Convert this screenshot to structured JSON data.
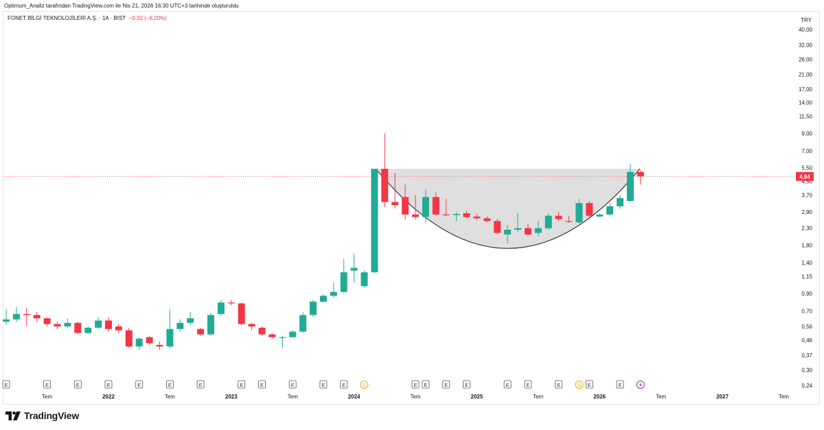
{
  "header": {
    "text": "Optimum_Analiz tarafından TradingView.com ile Nis 21, 2026 16:30 UTC+3 tarihinde oluşturuldu"
  },
  "legend": {
    "symbol": "FONET BİLGİ TEKNOLOJİLERİ A.Ş. · 1A · BIST",
    "change": "−0,32 (−6,20%)"
  },
  "brand": {
    "name": "TradingView"
  },
  "colors": {
    "up": "#22ab94",
    "down": "#f23645",
    "pattern_fill": "#dcdcdc",
    "pattern_line": "#333333",
    "price_line": "#f23645"
  },
  "chart_data": {
    "type": "candlestick",
    "interval": "1A",
    "y_scale": "log",
    "currency": "TRY",
    "ylim": [
      0.24,
      40.0
    ],
    "y_ticks": [
      "40,00",
      "32,00",
      "26,00",
      "21,00",
      "17,00",
      "14,00",
      "11,50",
      "9,00",
      "7,00",
      "5,50",
      "4,50",
      "3,70",
      "2,90",
      "2,30",
      "1,80",
      "1,40",
      "1,15",
      "0,90",
      "0,70",
      "0,56",
      "0,46",
      "0,37",
      "0,30",
      "0,24"
    ],
    "x_ticks": [
      {
        "label": "Tem",
        "date": "2021-07"
      },
      {
        "label": "2022",
        "date": "2022-01"
      },
      {
        "label": "Tem",
        "date": "2022-07"
      },
      {
        "label": "2023",
        "date": "2023-01"
      },
      {
        "label": "Tem",
        "date": "2023-07"
      },
      {
        "label": "2024",
        "date": "2024-01"
      },
      {
        "label": "Tem",
        "date": "2024-07"
      },
      {
        "label": "2025",
        "date": "2025-01"
      },
      {
        "label": "Tem",
        "date": "2025-07"
      },
      {
        "label": "2026",
        "date": "2026-01"
      },
      {
        "label": "Tem",
        "date": "2026-07"
      },
      {
        "label": "2027",
        "date": "2027-01"
      },
      {
        "label": "Tem",
        "date": "2027-07"
      }
    ],
    "last_price": "4,84",
    "candles": [
      {
        "date": "2021-03",
        "o": 0.6,
        "h": 0.72,
        "l": 0.57,
        "c": 0.62
      },
      {
        "date": "2021-04",
        "o": 0.62,
        "h": 0.74,
        "l": 0.6,
        "c": 0.67
      },
      {
        "date": "2021-05",
        "o": 0.67,
        "h": 0.73,
        "l": 0.56,
        "c": 0.66
      },
      {
        "date": "2021-06",
        "o": 0.66,
        "h": 0.69,
        "l": 0.6,
        "c": 0.63
      },
      {
        "date": "2021-07",
        "o": 0.63,
        "h": 0.64,
        "l": 0.56,
        "c": 0.58
      },
      {
        "date": "2021-08",
        "o": 0.58,
        "h": 0.6,
        "l": 0.54,
        "c": 0.56
      },
      {
        "date": "2021-09",
        "o": 0.56,
        "h": 0.63,
        "l": 0.55,
        "c": 0.59
      },
      {
        "date": "2021-10",
        "o": 0.59,
        "h": 0.6,
        "l": 0.5,
        "c": 0.51
      },
      {
        "date": "2021-11",
        "o": 0.51,
        "h": 0.56,
        "l": 0.5,
        "c": 0.55
      },
      {
        "date": "2021-12",
        "o": 0.55,
        "h": 0.64,
        "l": 0.54,
        "c": 0.61
      },
      {
        "date": "2022-01",
        "o": 0.61,
        "h": 0.64,
        "l": 0.52,
        "c": 0.54
      },
      {
        "date": "2022-02",
        "o": 0.56,
        "h": 0.58,
        "l": 0.51,
        "c": 0.53
      },
      {
        "date": "2022-03",
        "o": 0.53,
        "h": 0.55,
        "l": 0.41,
        "c": 0.42
      },
      {
        "date": "2022-04",
        "o": 0.42,
        "h": 0.48,
        "l": 0.4,
        "c": 0.47
      },
      {
        "date": "2022-05",
        "o": 0.48,
        "h": 0.49,
        "l": 0.43,
        "c": 0.44
      },
      {
        "date": "2022-06",
        "o": 0.43,
        "h": 0.45,
        "l": 0.4,
        "c": 0.42
      },
      {
        "date": "2022-07",
        "o": 0.42,
        "h": 0.72,
        "l": 0.41,
        "c": 0.54
      },
      {
        "date": "2022-08",
        "o": 0.54,
        "h": 0.62,
        "l": 0.52,
        "c": 0.59
      },
      {
        "date": "2022-09",
        "o": 0.59,
        "h": 0.69,
        "l": 0.57,
        "c": 0.63
      },
      {
        "date": "2022-10",
        "o": 0.54,
        "h": 0.55,
        "l": 0.49,
        "c": 0.5
      },
      {
        "date": "2022-11",
        "o": 0.5,
        "h": 0.68,
        "l": 0.49,
        "c": 0.66
      },
      {
        "date": "2022-12",
        "o": 0.67,
        "h": 0.82,
        "l": 0.65,
        "c": 0.79
      },
      {
        "date": "2023-01",
        "o": 0.79,
        "h": 0.82,
        "l": 0.76,
        "c": 0.78
      },
      {
        "date": "2023-02",
        "o": 0.78,
        "h": 0.79,
        "l": 0.57,
        "c": 0.58
      },
      {
        "date": "2023-03",
        "o": 0.58,
        "h": 0.59,
        "l": 0.53,
        "c": 0.56
      },
      {
        "date": "2023-04",
        "o": 0.55,
        "h": 0.56,
        "l": 0.49,
        "c": 0.5
      },
      {
        "date": "2023-05",
        "o": 0.5,
        "h": 0.51,
        "l": 0.47,
        "c": 0.48
      },
      {
        "date": "2023-06",
        "o": 0.48,
        "h": 0.49,
        "l": 0.41,
        "c": 0.48
      },
      {
        "date": "2023-07",
        "o": 0.48,
        "h": 0.53,
        "l": 0.48,
        "c": 0.52
      },
      {
        "date": "2023-08",
        "o": 0.52,
        "h": 0.69,
        "l": 0.51,
        "c": 0.66
      },
      {
        "date": "2023-09",
        "o": 0.66,
        "h": 0.82,
        "l": 0.64,
        "c": 0.8
      },
      {
        "date": "2023-10",
        "o": 0.8,
        "h": 0.89,
        "l": 0.79,
        "c": 0.87
      },
      {
        "date": "2023-11",
        "o": 0.87,
        "h": 1.05,
        "l": 0.85,
        "c": 0.92
      },
      {
        "date": "2023-12",
        "o": 0.92,
        "h": 1.48,
        "l": 0.9,
        "c": 1.22
      },
      {
        "date": "2024-01",
        "o": 1.25,
        "h": 1.6,
        "l": 1.05,
        "c": 1.3
      },
      {
        "date": "2024-02",
        "o": 1.0,
        "h": 1.25,
        "l": 0.98,
        "c": 1.22
      },
      {
        "date": "2024-03",
        "o": 1.22,
        "h": 5.4,
        "l": 1.2,
        "c": 5.4
      },
      {
        "date": "2024-04",
        "o": 5.4,
        "h": 9.0,
        "l": 3.1,
        "c": 3.35
      },
      {
        "date": "2024-05",
        "o": 3.35,
        "h": 5.1,
        "l": 3.05,
        "c": 3.2
      },
      {
        "date": "2024-06",
        "o": 3.6,
        "h": 4.3,
        "l": 2.6,
        "c": 2.8
      },
      {
        "date": "2024-07",
        "o": 2.8,
        "h": 3.7,
        "l": 2.6,
        "c": 2.7
      },
      {
        "date": "2024-08",
        "o": 2.7,
        "h": 4.0,
        "l": 2.5,
        "c": 3.6
      },
      {
        "date": "2024-09",
        "o": 3.6,
        "h": 3.85,
        "l": 2.75,
        "c": 2.8
      },
      {
        "date": "2024-10",
        "o": 2.8,
        "h": 3.5,
        "l": 2.75,
        "c": 2.78
      },
      {
        "date": "2024-11",
        "o": 2.78,
        "h": 2.9,
        "l": 2.55,
        "c": 2.82
      },
      {
        "date": "2024-12",
        "o": 2.85,
        "h": 2.95,
        "l": 2.65,
        "c": 2.7
      },
      {
        "date": "2025-01",
        "o": 2.72,
        "h": 2.82,
        "l": 2.58,
        "c": 2.65
      },
      {
        "date": "2025-02",
        "o": 2.65,
        "h": 2.72,
        "l": 2.5,
        "c": 2.55
      },
      {
        "date": "2025-03",
        "o": 2.55,
        "h": 2.62,
        "l": 2.1,
        "c": 2.15
      },
      {
        "date": "2025-04",
        "o": 2.1,
        "h": 2.4,
        "l": 1.85,
        "c": 2.25
      },
      {
        "date": "2025-05",
        "o": 2.25,
        "h": 2.85,
        "l": 2.18,
        "c": 2.3
      },
      {
        "date": "2025-06",
        "o": 2.3,
        "h": 2.45,
        "l": 2.05,
        "c": 2.1
      },
      {
        "date": "2025-07",
        "o": 2.15,
        "h": 2.55,
        "l": 2.05,
        "c": 2.3
      },
      {
        "date": "2025-08",
        "o": 2.3,
        "h": 2.85,
        "l": 2.25,
        "c": 2.75
      },
      {
        "date": "2025-09",
        "o": 2.75,
        "h": 2.9,
        "l": 2.55,
        "c": 2.62
      },
      {
        "date": "2025-10",
        "o": 2.55,
        "h": 2.75,
        "l": 2.48,
        "c": 2.52
      },
      {
        "date": "2025-11",
        "o": 2.5,
        "h": 3.5,
        "l": 2.45,
        "c": 3.3
      },
      {
        "date": "2025-12",
        "o": 3.3,
        "h": 3.4,
        "l": 2.7,
        "c": 2.75
      },
      {
        "date": "2026-01",
        "o": 2.72,
        "h": 2.85,
        "l": 2.7,
        "c": 2.8
      },
      {
        "date": "2026-02",
        "o": 2.8,
        "h": 3.3,
        "l": 2.75,
        "c": 3.15
      },
      {
        "date": "2026-03",
        "o": 3.15,
        "h": 3.7,
        "l": 3.05,
        "c": 3.55
      },
      {
        "date": "2026-04",
        "o": 3.4,
        "h": 5.8,
        "l": 3.35,
        "c": 5.16
      },
      {
        "date": "2026-05",
        "o": 5.16,
        "h": 5.3,
        "l": 4.3,
        "c": 4.84
      }
    ],
    "pattern": {
      "type": "cup",
      "rim_price": 5.4,
      "bottom_price": 1.72,
      "start": "2024-03",
      "end": "2026-04"
    },
    "events": [
      {
        "type": "E",
        "date": "2021-03"
      },
      {
        "type": "E",
        "date": "2021-07"
      },
      {
        "type": "E",
        "date": "2021-10"
      },
      {
        "type": "E",
        "date": "2022-01"
      },
      {
        "type": "E",
        "date": "2022-04"
      },
      {
        "type": "E",
        "date": "2022-07"
      },
      {
        "type": "E",
        "date": "2022-10"
      },
      {
        "type": "E",
        "date": "2023-02"
      },
      {
        "type": "E",
        "date": "2023-04"
      },
      {
        "type": "E",
        "date": "2023-07"
      },
      {
        "type": "E",
        "date": "2023-10"
      },
      {
        "type": "E",
        "date": "2023-12"
      },
      {
        "type": "S",
        "date": "2024-02"
      },
      {
        "type": "E",
        "date": "2024-07"
      },
      {
        "type": "E",
        "date": "2024-08"
      },
      {
        "type": "E",
        "date": "2024-10"
      },
      {
        "type": "E",
        "date": "2024-12"
      },
      {
        "type": "E",
        "date": "2025-04"
      },
      {
        "type": "E",
        "date": "2025-06"
      },
      {
        "type": "E",
        "date": "2025-09"
      },
      {
        "type": "S",
        "date": "2025-11"
      },
      {
        "type": "E",
        "date": "2025-12"
      },
      {
        "type": "E",
        "date": "2026-03"
      },
      {
        "type": "D",
        "date": "2026-05"
      }
    ]
  }
}
